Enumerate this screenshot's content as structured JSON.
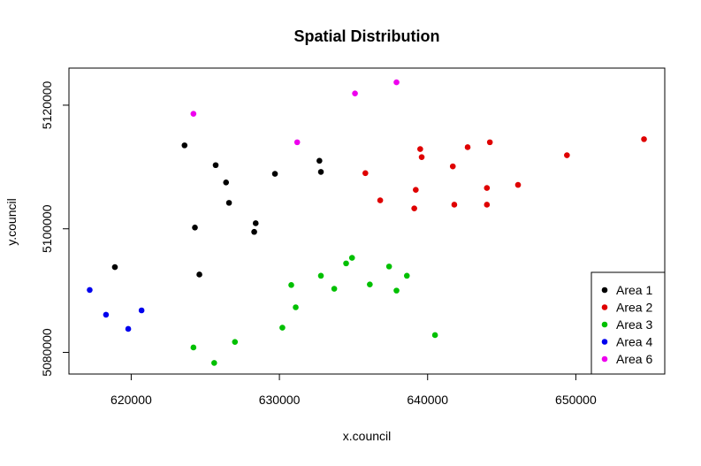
{
  "chart_data": {
    "type": "scatter",
    "title": "Spatial Distribution",
    "xlabel": "x.council",
    "ylabel": "y.council",
    "xlim": [
      615800,
      656000
    ],
    "ylim": [
      5076500,
      5126000
    ],
    "xticks": [
      {
        "value": 620000,
        "label": "620000"
      },
      {
        "value": 630000,
        "label": "630000"
      },
      {
        "value": 640000,
        "label": "640000"
      },
      {
        "value": 650000,
        "label": "650000"
      }
    ],
    "yticks": [
      {
        "value": 5080000,
        "label": "5080000"
      },
      {
        "value": 5100000,
        "label": "5100000"
      },
      {
        "value": 5120000,
        "label": "5120000"
      }
    ],
    "grid": false,
    "legend_position": "bottom-right",
    "series": [
      {
        "name": "Area 1",
        "color": "#000000",
        "points": [
          [
            623600,
            5113500
          ],
          [
            625700,
            5110300
          ],
          [
            626400,
            5107500
          ],
          [
            626600,
            5104200
          ],
          [
            624300,
            5100200
          ],
          [
            628400,
            5100900
          ],
          [
            628300,
            5099500
          ],
          [
            629700,
            5108900
          ],
          [
            632700,
            5111000
          ],
          [
            632800,
            5109200
          ],
          [
            618900,
            5093800
          ],
          [
            624600,
            5092600
          ]
        ]
      },
      {
        "name": "Area 2",
        "color": "#df0000",
        "points": [
          [
            635800,
            5109000
          ],
          [
            639500,
            5112900
          ],
          [
            639600,
            5111600
          ],
          [
            642700,
            5113200
          ],
          [
            644200,
            5114000
          ],
          [
            641700,
            5110100
          ],
          [
            649400,
            5111900
          ],
          [
            654600,
            5114500
          ],
          [
            646100,
            5107100
          ],
          [
            639200,
            5106300
          ],
          [
            636800,
            5104600
          ],
          [
            641800,
            5103900
          ],
          [
            639100,
            5103300
          ],
          [
            644000,
            5103900
          ],
          [
            644000,
            5106600
          ]
        ]
      },
      {
        "name": "Area 3",
        "color": "#00c000",
        "points": [
          [
            634900,
            5095300
          ],
          [
            634500,
            5094400
          ],
          [
            637400,
            5093900
          ],
          [
            638600,
            5092400
          ],
          [
            632800,
            5092400
          ],
          [
            630800,
            5090900
          ],
          [
            633700,
            5090300
          ],
          [
            636100,
            5091000
          ],
          [
            637900,
            5090000
          ],
          [
            631100,
            5087300
          ],
          [
            630200,
            5084000
          ],
          [
            627000,
            5081700
          ],
          [
            624200,
            5080800
          ],
          [
            625600,
            5078300
          ],
          [
            640500,
            5082800
          ]
        ]
      },
      {
        "name": "Area 4",
        "color": "#0000ee",
        "points": [
          [
            617200,
            5090100
          ],
          [
            620700,
            5086800
          ],
          [
            618300,
            5086100
          ],
          [
            619800,
            5083800
          ]
        ]
      },
      {
        "name": "Area 6",
        "color": "#ee00ee",
        "points": [
          [
            624200,
            5118600
          ],
          [
            631200,
            5114000
          ],
          [
            635100,
            5121900
          ],
          [
            637900,
            5123700
          ]
        ]
      }
    ]
  }
}
